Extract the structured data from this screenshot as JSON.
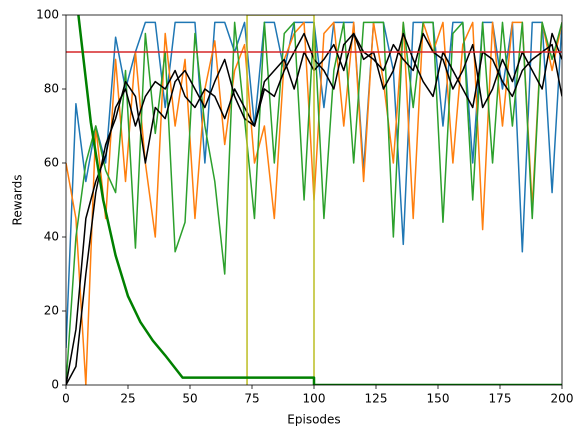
{
  "chart_data": {
    "type": "line",
    "x_label": "Episodes",
    "y_label": "Rewards",
    "xlim": [
      0,
      200
    ],
    "ylim": [
      0,
      100
    ],
    "xticks": [
      0,
      25,
      50,
      75,
      100,
      125,
      150,
      175,
      200
    ],
    "yticks": [
      0,
      20,
      40,
      60,
      80,
      100
    ],
    "x": [
      0,
      4,
      8,
      12,
      16,
      20,
      24,
      28,
      32,
      36,
      40,
      44,
      48,
      52,
      56,
      60,
      64,
      68,
      72,
      76,
      80,
      84,
      88,
      92,
      96,
      100,
      104,
      108,
      112,
      116,
      120,
      124,
      128,
      132,
      136,
      140,
      144,
      148,
      152,
      156,
      160,
      164,
      168,
      172,
      176,
      180,
      184,
      188,
      192,
      196,
      200
    ],
    "series": [
      {
        "color": "#1f77b4",
        "width": 1.5,
        "values": [
          10,
          76,
          55,
          70,
          60,
          94,
          80,
          90,
          98,
          98,
          75,
          98,
          98,
          98,
          60,
          98,
          98,
          90,
          98,
          70,
          98,
          98,
          85,
          98,
          98,
          98,
          75,
          98,
          98,
          98,
          58,
          98,
          98,
          85,
          38,
          98,
          98,
          98,
          70,
          98,
          98,
          60,
          98,
          98,
          80,
          98,
          36,
          98,
          98,
          52,
          98
        ]
      },
      {
        "color": "#ff7f0e",
        "width": 1.5,
        "values": [
          60,
          45,
          0,
          70,
          45,
          88,
          55,
          90,
          60,
          40,
          95,
          70,
          88,
          45,
          80,
          93,
          65,
          85,
          92,
          60,
          70,
          45,
          88,
          95,
          98,
          50,
          95,
          98,
          70,
          98,
          55,
          98,
          82,
          60,
          98,
          45,
          98,
          90,
          98,
          60,
          92,
          98,
          42,
          98,
          70,
          98,
          98,
          48,
          98,
          85,
          98
        ]
      },
      {
        "color": "#2ca02c",
        "width": 1.5,
        "values": [
          0,
          40,
          60,
          70,
          58,
          52,
          85,
          37,
          95,
          68,
          90,
          36,
          44,
          95,
          70,
          55,
          30,
          98,
          72,
          45,
          98,
          60,
          95,
          98,
          50,
          98,
          45,
          85,
          98,
          60,
          98,
          98,
          98,
          40,
          98,
          75,
          98,
          98,
          44,
          95,
          98,
          50,
          98,
          60,
          98,
          70,
          98,
          45,
          98,
          88,
          98
        ]
      },
      {
        "color": "#000000",
        "width": 1.5,
        "values": [
          0,
          15,
          45,
          55,
          62,
          75,
          80,
          70,
          78,
          82,
          80,
          85,
          78,
          75,
          80,
          78,
          72,
          80,
          75,
          70,
          82,
          85,
          88,
          80,
          90,
          85,
          88,
          92,
          85,
          95,
          90,
          88,
          85,
          92,
          88,
          85,
          95,
          90,
          88,
          80,
          85,
          92,
          75,
          80,
          88,
          82,
          90,
          85,
          80,
          95,
          88
        ]
      },
      {
        "color": "#000000",
        "width": 1.5,
        "values": [
          0,
          5,
          30,
          52,
          65,
          72,
          82,
          78,
          60,
          75,
          72,
          82,
          85,
          80,
          75,
          82,
          88,
          78,
          72,
          70,
          80,
          78,
          85,
          90,
          95,
          88,
          85,
          80,
          92,
          95,
          88,
          90,
          80,
          85,
          95,
          88,
          82,
          78,
          90,
          85,
          80,
          75,
          90,
          88,
          82,
          78,
          85,
          88,
          90,
          92,
          78
        ]
      },
      {
        "color": "#d62728",
        "width": 1.5,
        "x": [
          0,
          200
        ],
        "values": [
          90,
          90
        ]
      },
      {
        "color": "#bcbd22",
        "width": 1.5,
        "x": [
          73,
          73,
          100,
          100,
          200
        ],
        "values": [
          0,
          100,
          100,
          0,
          0
        ]
      },
      {
        "color": "#008000",
        "width": 2.5,
        "x": [
          5,
          10,
          15,
          20,
          25,
          30,
          35,
          40,
          47,
          100,
          100,
          200
        ],
        "values": [
          100,
          71,
          50,
          35,
          24,
          17,
          12,
          8,
          2,
          2,
          0,
          0
        ]
      }
    ]
  }
}
